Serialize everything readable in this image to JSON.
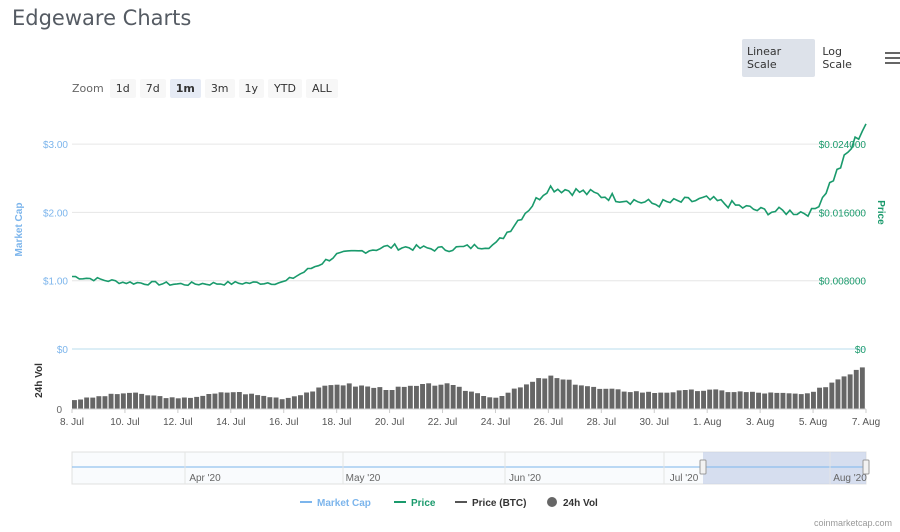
{
  "header": {
    "title": "Edgeware Charts"
  },
  "scale": {
    "linear_label": "Linear Scale",
    "log_label": "Log Scale",
    "active": "linear"
  },
  "zoom": {
    "label": "Zoom",
    "options": [
      "1d",
      "7d",
      "1m",
      "3m",
      "1y",
      "YTD",
      "ALL"
    ],
    "active": "1m"
  },
  "credit": "coinmarketcap.com",
  "colors": {
    "market_cap": "#7cb5ec",
    "price": "#1a9a6c",
    "price_btc": "#555555",
    "volume": "#666666",
    "navigator_mask": "#c8d2e8"
  },
  "chart_data": {
    "type": "line",
    "x": [
      "8. Jul",
      "10. Jul",
      "12. Jul",
      "14. Jul",
      "16. Jul",
      "18. Jul",
      "20. Jul",
      "22. Jul",
      "24. Jul",
      "26. Jul",
      "28. Jul",
      "30. Jul",
      "1. Aug",
      "3. Aug",
      "5. Aug",
      "7. Aug"
    ],
    "left_axis": {
      "label": "Market Cap",
      "ticks": [
        "$3.00",
        "$2.00",
        "$1.00",
        "$0"
      ],
      "tick_values": [
        3,
        2,
        1,
        0
      ]
    },
    "right_axis": {
      "label": "Price",
      "ticks": [
        "$0.024000",
        "$0.016000",
        "$0.008000",
        "$0"
      ],
      "tick_values": [
        0.024,
        0.016,
        0.008,
        0
      ]
    },
    "volume_axis": {
      "label": "24h Vol",
      "ticks": [
        "0"
      ]
    },
    "ylim_left": [
      0,
      3.5
    ],
    "series": [
      {
        "name": "Price",
        "values": [
          0.0085,
          0.0078,
          0.0076,
          0.0077,
          0.0078,
          0.011,
          0.012,
          0.0117,
          0.0122,
          0.019,
          0.018,
          0.017,
          0.0175,
          0.0162,
          0.016,
          0.0265
        ]
      },
      {
        "name": "24h Vol",
        "values": [
          0.25,
          0.45,
          0.28,
          0.48,
          0.28,
          0.7,
          0.55,
          0.7,
          0.3,
          0.9,
          0.55,
          0.45,
          0.52,
          0.45,
          0.4,
          1.2
        ]
      }
    ],
    "navigator": {
      "labels": [
        "Apr '20",
        "May '20",
        "Jun '20",
        "Jul '20",
        "Aug '20"
      ]
    },
    "legend": {
      "position": "bottom",
      "items": [
        "Market Cap",
        "Price",
        "Price (BTC)",
        "24h Vol"
      ]
    }
  }
}
